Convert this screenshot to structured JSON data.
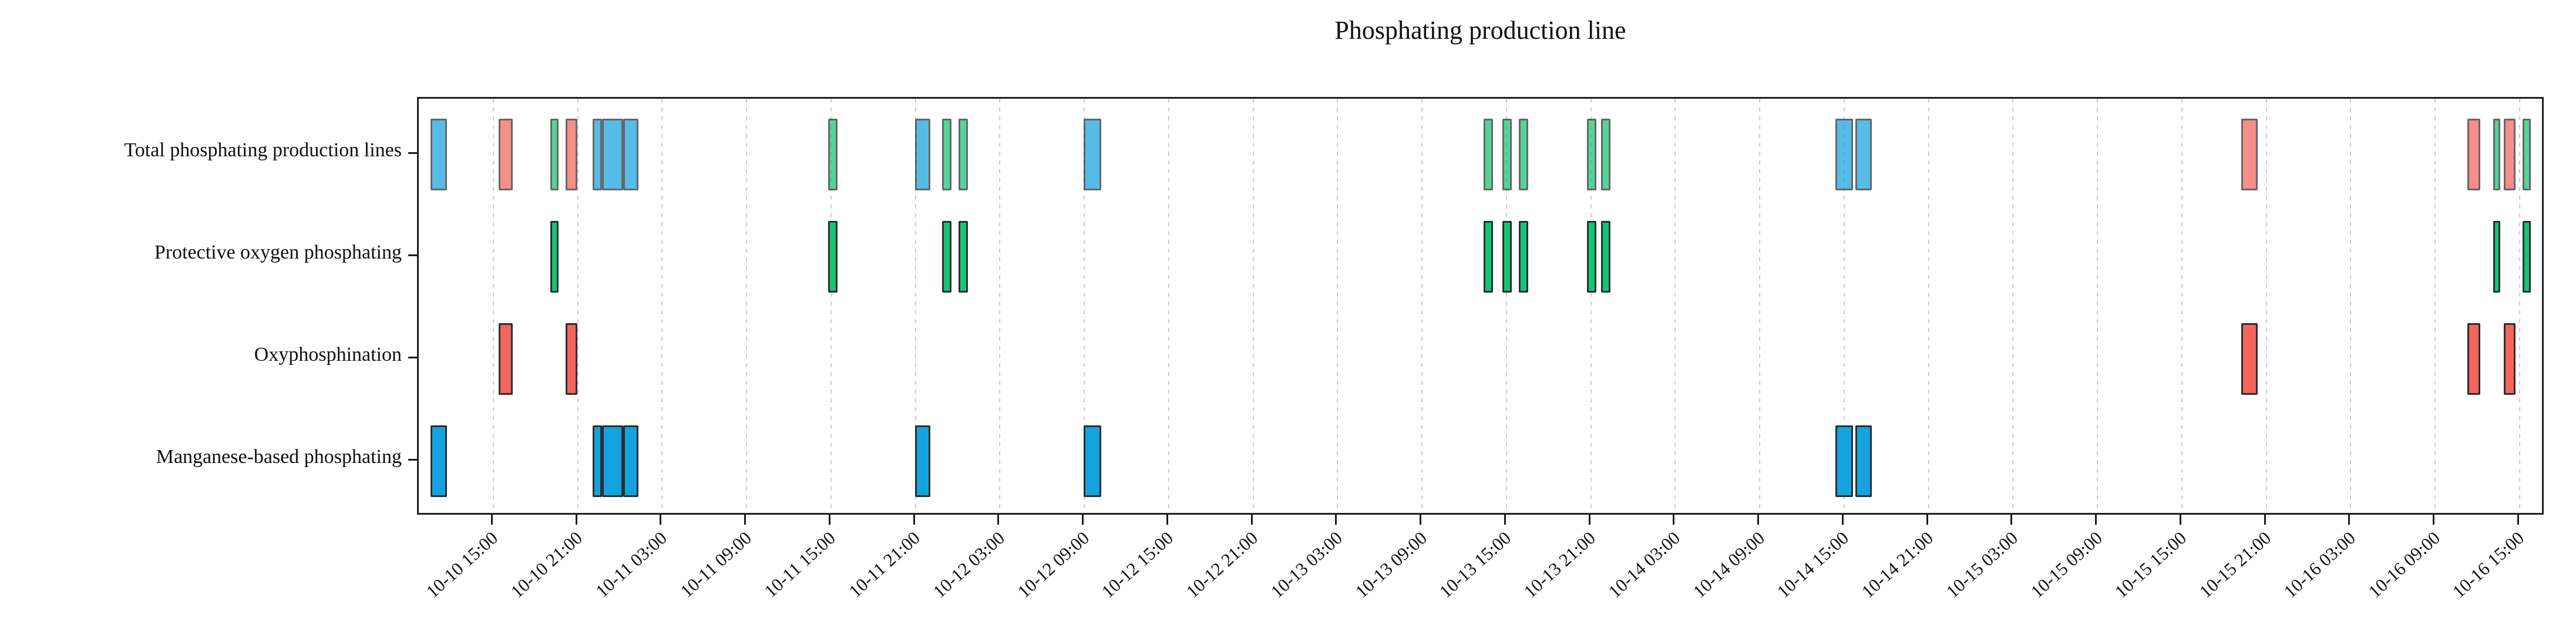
{
  "chart_data": {
    "type": "gantt",
    "title": "Phosphating production line",
    "xlabel": "",
    "ylabel": "",
    "grid": "vertical dashed at every x tick",
    "legend_position": "none",
    "x_range": [
      "10-10 09:40",
      "10-16 16:50"
    ],
    "x_ticks": [
      "10-10 15:00",
      "10-10 21:00",
      "10-11 03:00",
      "10-11 09:00",
      "10-11 15:00",
      "10-11 21:00",
      "10-12 03:00",
      "10-12 09:00",
      "10-12 15:00",
      "10-12 21:00",
      "10-13 03:00",
      "10-13 09:00",
      "10-13 15:00",
      "10-13 21:00",
      "10-14 03:00",
      "10-14 09:00",
      "10-14 15:00",
      "10-14 21:00",
      "10-15 03:00",
      "10-15 09:00",
      "10-15 15:00",
      "10-15 21:00",
      "10-16 03:00",
      "10-16 09:00",
      "10-16 15:00"
    ],
    "rows": [
      "Total phosphating production lines",
      "Protective oxygen phosphating",
      "Oxyphosphination",
      "Manganese-based phosphating"
    ],
    "total_row_label": "Total phosphating production lines",
    "total_row_rule": "union of all machine intervals drawn semi-transparent in each machine color",
    "machines": [
      {
        "name": "Protective oxygen phosphating",
        "color": "#12c674",
        "row_index": 1,
        "intervals": [
          [
            "10-10 19:10",
            "10-10 19:45"
          ],
          [
            "10-11 14:55",
            "10-11 15:35"
          ],
          [
            "10-11 23:00",
            "10-11 23:40"
          ],
          [
            "10-12 00:10",
            "10-12 00:50"
          ],
          [
            "10-13 13:30",
            "10-13 14:10"
          ],
          [
            "10-13 14:50",
            "10-13 15:30"
          ],
          [
            "10-13 16:00",
            "10-13 16:40"
          ],
          [
            "10-13 20:50",
            "10-13 21:30"
          ],
          [
            "10-13 21:50",
            "10-13 22:30"
          ],
          [
            "10-16 13:15",
            "10-16 13:45"
          ],
          [
            "10-16 15:20",
            "10-16 15:55"
          ]
        ]
      },
      {
        "name": "Oxyphosphination",
        "color": "#f4655c",
        "row_index": 2,
        "intervals": [
          [
            "10-10 15:30",
            "10-10 16:30"
          ],
          [
            "10-10 20:15",
            "10-10 21:05"
          ],
          [
            "10-15 19:20",
            "10-15 20:30"
          ],
          [
            "10-16 11:25",
            "10-16 12:20"
          ],
          [
            "10-16 14:00",
            "10-16 14:50"
          ]
        ]
      },
      {
        "name": "Manganese-based phosphating",
        "color": "#14a3de",
        "row_index": 3,
        "intervals": [
          [
            "10-10 10:40",
            "10-10 11:50"
          ],
          [
            "10-10 22:10",
            "10-10 22:50"
          ],
          [
            "10-10 22:50",
            "10-11 00:20"
          ],
          [
            "10-11 00:20",
            "10-11 01:25"
          ],
          [
            "10-11 21:05",
            "10-11 22:10"
          ],
          [
            "10-12 09:05",
            "10-12 10:20"
          ],
          [
            "10-14 14:30",
            "10-14 15:45"
          ],
          [
            "10-14 15:55",
            "10-14 17:05"
          ]
        ]
      }
    ],
    "colors": {
      "axis": "#1f1f1f",
      "grid": "#cdcdcd",
      "bar_border": "#2e2e2e",
      "background": "#ffffff",
      "text": "#111111"
    }
  }
}
